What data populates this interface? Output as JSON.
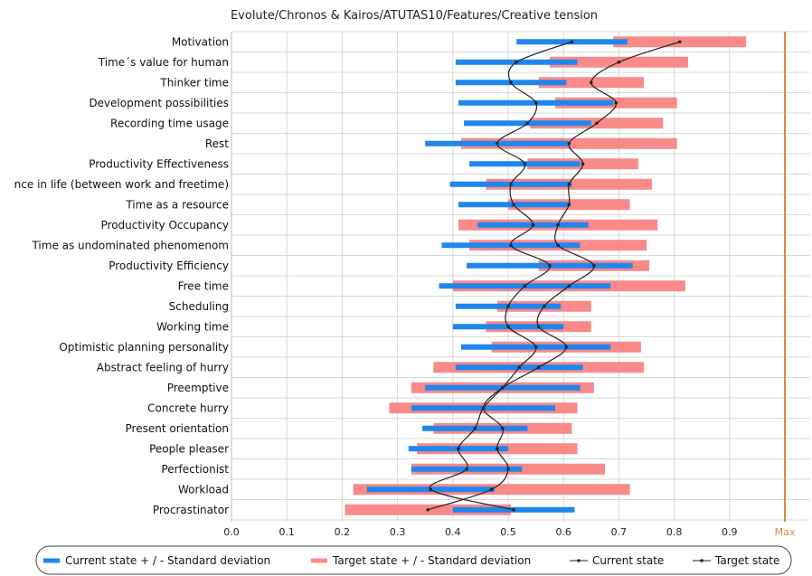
{
  "chart_data": {
    "type": "bar",
    "title": "Evolute/Chronos & Kairos/ATUTAS10/Features/Creative tension",
    "xlim": [
      0,
      1
    ],
    "xticks": [
      "0.0",
      "0.1",
      "0.2",
      "0.3",
      "0.4",
      "0.5",
      "0.6",
      "0.7",
      "0.8",
      "0.9"
    ],
    "max_label": "Max",
    "grid": true,
    "categories": [
      "Motivation",
      "Time´s value for human",
      "Thinker time",
      "Development possibilities",
      "Recording time usage",
      "Rest",
      "Productivity Effectiveness",
      "nce in life (between work and freetime)",
      "Time as a resource",
      "Productivity Occupancy",
      "Time as undominated phenomenom",
      "Productivity Efficiency",
      "Free time",
      "Scheduling",
      "Working time",
      "Optimistic planning personality",
      "Abstract feeling of hurry",
      "Preemptive",
      "Concrete hurry",
      "Present orientation",
      "People pleaser",
      "Perfectionist",
      "Workload",
      "Procrastinator"
    ],
    "current_state": [
      0.615,
      0.515,
      0.505,
      0.55,
      0.535,
      0.48,
      0.53,
      0.505,
      0.51,
      0.545,
      0.505,
      0.575,
      0.53,
      0.5,
      0.5,
      0.55,
      0.52,
      0.49,
      0.455,
      0.44,
      0.41,
      0.425,
      0.36,
      0.51
    ],
    "current_sd": [
      0.1,
      0.11,
      0.1,
      0.14,
      0.115,
      0.13,
      0.1,
      0.11,
      0.1,
      0.1,
      0.125,
      0.15,
      0.155,
      0.095,
      0.1,
      0.135,
      0.115,
      0.14,
      0.13,
      0.095,
      0.09,
      0.1,
      0.115,
      0.11
    ],
    "target_state": [
      0.81,
      0.7,
      0.65,
      0.695,
      0.66,
      0.61,
      0.635,
      0.61,
      0.61,
      0.59,
      0.59,
      0.655,
      0.61,
      0.565,
      0.555,
      0.605,
      0.555,
      0.49,
      0.455,
      0.49,
      0.48,
      0.5,
      0.47,
      0.355
    ],
    "target_sd": [
      0.12,
      0.125,
      0.095,
      0.11,
      0.12,
      0.195,
      0.1,
      0.15,
      0.11,
      0.18,
      0.16,
      0.1,
      0.21,
      0.085,
      0.095,
      0.135,
      0.19,
      0.165,
      0.17,
      0.125,
      0.145,
      0.175,
      0.25,
      0.15
    ],
    "legend": [
      "Current state + / - Standard deviation",
      "Target state + / - Standard deviation",
      "Current state",
      "Target state"
    ],
    "legend_position": "bottom",
    "colors": {
      "current_bar": "#1f86ee",
      "target_bar": "#f98a8a",
      "line": "#222222",
      "max_line": "#d48a4a",
      "grid": "#d8d8d8"
    }
  }
}
